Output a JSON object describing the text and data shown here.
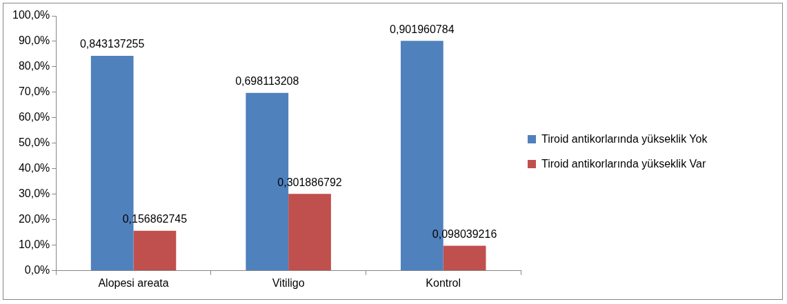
{
  "chart_data": {
    "type": "bar",
    "categories": [
      "Alopesi areata",
      "Vitiligo",
      "Kontrol"
    ],
    "series": [
      {
        "name": "Tiroid antikorlarında yükseklik Yok",
        "color": "#4f81bd",
        "values": [
          0.843137255,
          0.698113208,
          0.901960784
        ],
        "value_labels": [
          "0,843137255",
          "0,698113208",
          "0,901960784"
        ]
      },
      {
        "name": "Tiroid antikorlarında yükseklik Var",
        "color": "#c0504d",
        "values": [
          0.156862745,
          0.301886792,
          0.098039216
        ],
        "value_labels": [
          "0,156862745",
          "0,301886792",
          "0,098039216"
        ]
      }
    ],
    "ylim": [
      0,
      1
    ],
    "yticks": [
      {
        "value": 0,
        "label": "0,0%"
      },
      {
        "value": 0.1,
        "label": "10,0%"
      },
      {
        "value": 0.2,
        "label": "20,0%"
      },
      {
        "value": 0.3,
        "label": "30,0%"
      },
      {
        "value": 0.4,
        "label": "40,0%"
      },
      {
        "value": 0.5,
        "label": "50,0%"
      },
      {
        "value": 0.6,
        "label": "60,0%"
      },
      {
        "value": 0.7,
        "label": "70,0%"
      },
      {
        "value": 0.8,
        "label": "80,0%"
      },
      {
        "value": 0.9,
        "label": "90,0%"
      },
      {
        "value": 1,
        "label": "100,0%"
      }
    ],
    "grid": false,
    "legend": "right"
  }
}
